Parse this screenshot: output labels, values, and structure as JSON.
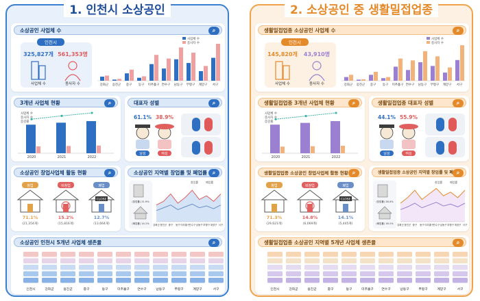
{
  "left": {
    "title": "1. 인천시 소상공인",
    "cards": {
      "count": "소상공인 사업체 수",
      "trend": "3개년 사업체 현황",
      "gender": "대표자 성별",
      "startup": "소상공인 창업사업체 활동 현황",
      "openclose": "소상공인 지역별 창업률 및 폐업률",
      "survival": "소상공인 인천시 5개년 사업체 생존율"
    },
    "summary": {
      "city_label": "인천시",
      "biz_value": "325,827개",
      "emp_value": "561,353명",
      "biz_label": "사업체 수",
      "emp_label": "종사자 수"
    },
    "years": [
      "2020",
      "2021",
      "2022"
    ],
    "gender": {
      "male_pct": "61.1%",
      "female_pct": "38.9%",
      "male_label": "남성",
      "female_label": "여성"
    },
    "startup": {
      "tags": [
        "창업",
        "비창업",
        "폐업"
      ],
      "pcts": [
        "71.1%",
        "15.2%",
        "12.7%"
      ],
      "counts": [
        "(21,354개)",
        "(15,816개)",
        "(13,664개)"
      ],
      "close_label": "CLOSE"
    },
    "openclose_side": {
      "open_value": "(창업률) 21.9%",
      "close_value": "(폐업률) 14.1%"
    },
    "region_labels": [
      "인천시",
      "강화군",
      "옹진군",
      "중구",
      "동구",
      "미추홀구",
      "연수구",
      "남동구",
      "부평구",
      "계양구",
      "서구"
    ]
  },
  "right": {
    "title": "2. 소상공인 중 생활밀접업종",
    "cards": {
      "count": "생활밀접업종 소상공인 사업체 수",
      "trend": "생활밀접업종 3개년 사업체 현황",
      "gender": "생활밀접업종 대표자 성별",
      "startup": "생활밀접업종 소상공인 창업사업체 활동 현황",
      "openclose": "생활밀접업종 소상공인 지역별 창업률 및 폐업률",
      "survival": "생활밀접업종 소상공인 지역별 5개년 사업체 생존율"
    },
    "summary": {
      "city_label": "인천시",
      "biz_value": "145,820개",
      "emp_value": "43,910명",
      "biz_label": "사업체 수",
      "emp_label": "종사자 수"
    },
    "years": [
      "2020",
      "2021",
      "2022"
    ],
    "gender": {
      "male_pct": "44.1%",
      "female_pct": "55.9%",
      "male_label": "남성",
      "female_label": "여성"
    },
    "startup": {
      "tags": [
        "창업",
        "비창업",
        "폐업"
      ],
      "pcts": [
        "71.3%",
        "14.8%",
        "14.1%"
      ],
      "counts": [
        "(29,621개)",
        "(6,069개)",
        "(5,445개)"
      ],
      "close_label": "CLOSE"
    },
    "openclose_side": {
      "open_value": "(창업률) 28.4%",
      "close_value": "(폐업률) 16.1%"
    },
    "region_labels": [
      "인천시",
      "강화군",
      "옹진군",
      "중구",
      "동구",
      "미추홀구",
      "연수구",
      "남동구",
      "부평구",
      "계양구",
      "서구"
    ]
  },
  "chart_data": [
    {
      "type": "bar",
      "title": "소상공인 사업체 수",
      "categories": [
        "강화군",
        "옹진군",
        "중구",
        "동구",
        "미추홀구",
        "연수구",
        "남동구",
        "부평구",
        "계양구",
        "서구"
      ],
      "series": [
        {
          "name": "사업체 수",
          "values": [
            11,
            3,
            20,
            8,
            45,
            33,
            58,
            48,
            26,
            62
          ]
        },
        {
          "name": "종사자 수",
          "values": [
            14,
            5,
            30,
            12,
            70,
            60,
            90,
            76,
            40,
            100
          ]
        }
      ],
      "legend": "top-right",
      "colors": {
        "biz": "#2f6fc2",
        "emp": "#f0a0a0"
      }
    },
    {
      "type": "bar",
      "title": "3개년 사업체 현황",
      "categories": [
        "2020",
        "2021",
        "2022"
      ],
      "series": [
        {
          "name": "사업체 수",
          "values": [
            290,
            310,
            326
          ]
        },
        {
          "name": "종사자 수",
          "values": [
            70,
            74,
            78
          ]
        },
        {
          "name": "증감률",
          "values": [
            3.1,
            3.4,
            3.8
          ]
        }
      ]
    },
    {
      "type": "line",
      "title": "소상공인 지역별 창업률 및 폐업률",
      "categories": [
        "강화군",
        "옹진군",
        "중구",
        "동구",
        "미추홀구",
        "연수구",
        "남동구",
        "부평구",
        "계양구",
        "서구"
      ],
      "series": [
        {
          "name": "창업률",
          "values": [
            18,
            22,
            30,
            20,
            26,
            34,
            24,
            28,
            22,
            30
          ]
        },
        {
          "name": "폐업률",
          "values": [
            12,
            15,
            18,
            13,
            16,
            19,
            15,
            17,
            14,
            18
          ]
        }
      ]
    },
    {
      "type": "bar",
      "title": "생활밀접업종 소상공인 사업체 수",
      "categories": [
        "강화군",
        "옹진군",
        "중구",
        "동구",
        "미추홀구",
        "연수구",
        "남동구",
        "부평구",
        "계양구",
        "서구"
      ],
      "series": [
        {
          "name": "사업체 수",
          "values": [
            10,
            3,
            16,
            7,
            38,
            29,
            50,
            40,
            22,
            56
          ]
        },
        {
          "name": "종사자 수",
          "values": [
            16,
            4,
            24,
            10,
            60,
            55,
            80,
            66,
            36,
            96
          ]
        }
      ],
      "legend": "top-right",
      "colors": {
        "biz": "#9b7fd1",
        "emp": "#f2b27a"
      }
    },
    {
      "type": "bar",
      "title": "생활밀접업종 3개년 사업체 현황",
      "categories": [
        "2020",
        "2021",
        "2022"
      ],
      "series": [
        {
          "name": "사업체 수",
          "values": [
            130,
            138,
            146
          ]
        },
        {
          "name": "종사자 수",
          "values": [
            30,
            32,
            34
          ]
        },
        {
          "name": "증감률",
          "values": [
            2.5,
            2.8,
            3.0
          ]
        }
      ]
    },
    {
      "type": "line",
      "title": "생활밀접업종 소상공인 지역별 창업률 및 폐업률",
      "categories": [
        "강화군",
        "옹진군",
        "중구",
        "동구",
        "미추홀구",
        "연수구",
        "남동구",
        "부평구",
        "계양구",
        "서구"
      ],
      "series": [
        {
          "name": "창업률",
          "values": [
            20,
            26,
            34,
            24,
            30,
            36,
            28,
            32,
            26,
            34
          ]
        },
        {
          "name": "폐업률",
          "values": [
            13,
            16,
            20,
            15,
            18,
            21,
            17,
            19,
            16,
            20
          ]
        }
      ]
    }
  ]
}
